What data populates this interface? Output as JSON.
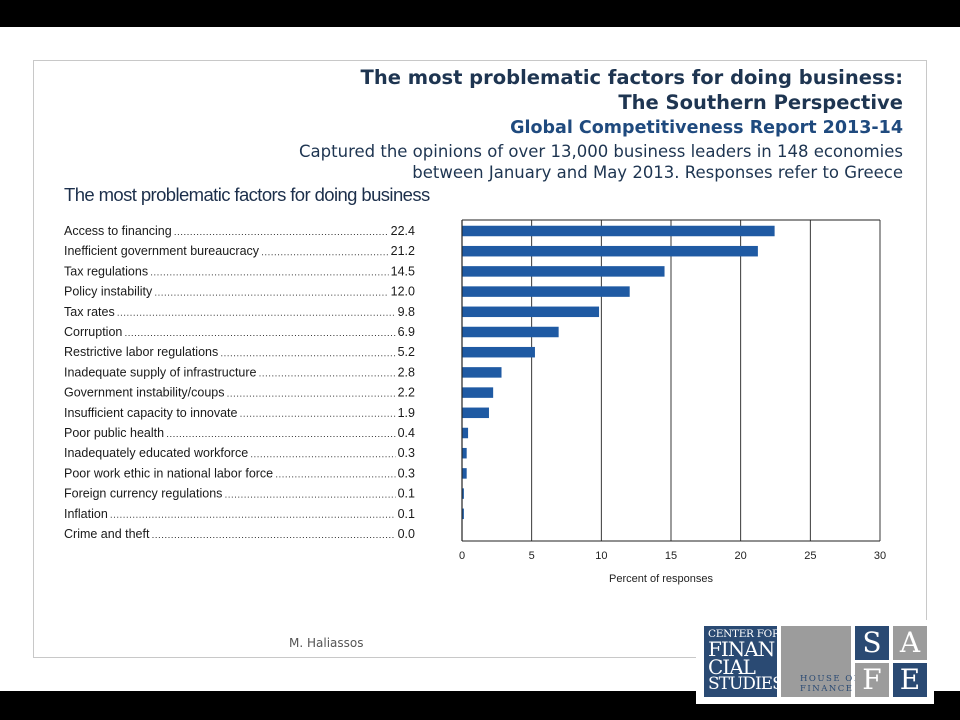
{
  "header": {
    "title_line1": "The most problematic factors for doing business:",
    "title_line2": "The Southern Perspective",
    "report": "Global Competitiveness Report 2013-14",
    "subtitle_line1": "Captured the opinions of over 13,000 business leaders in 148 economies",
    "subtitle_line2": "between January and May 2013. Responses refer to Greece"
  },
  "chart_data": {
    "type": "bar",
    "orientation": "horizontal",
    "title": "The most problematic factors for doing business",
    "xlabel": "Percent of responses",
    "ylabel": "",
    "xlim": [
      0,
      30
    ],
    "xticks": [
      0,
      5,
      10,
      15,
      20,
      25,
      30
    ],
    "grid": "vertical",
    "bar_color": "#1f5aa3",
    "categories": [
      "Access to financing",
      "Inefficient government bureaucracy",
      "Tax regulations",
      "Policy instability",
      "Tax rates",
      "Corruption",
      "Restrictive labor regulations",
      "Inadequate supply of infrastructure",
      "Government instability/coups",
      "Insufficient capacity to innovate",
      "Poor public health",
      "Inadequately educated workforce",
      "Poor work ethic in national labor force",
      "Foreign currency regulations",
      "Inflation",
      "Crime and theft"
    ],
    "values": [
      22.4,
      21.2,
      14.5,
      12.0,
      9.8,
      6.9,
      5.2,
      2.8,
      2.2,
      1.9,
      0.4,
      0.3,
      0.3,
      0.1,
      0.1,
      0.0
    ],
    "value_labels": [
      "22.4",
      "21.2",
      "14.5",
      "12.0",
      "9.8",
      "6.9",
      "5.2",
      "2.8",
      "2.2",
      "1.9",
      "0.4",
      "0.3",
      "0.3",
      "0.1",
      "0.1",
      "0.0"
    ]
  },
  "footer": {
    "author": "M. Haliassos"
  },
  "logos": {
    "cfs_lines": [
      "CENTER FOR",
      "FINAN",
      "CIAL",
      "STUDIES"
    ],
    "hof_lines": [
      "HOUSE OF",
      "FINANCE"
    ],
    "safe_letters": [
      "S",
      "A",
      "F",
      "E"
    ]
  }
}
